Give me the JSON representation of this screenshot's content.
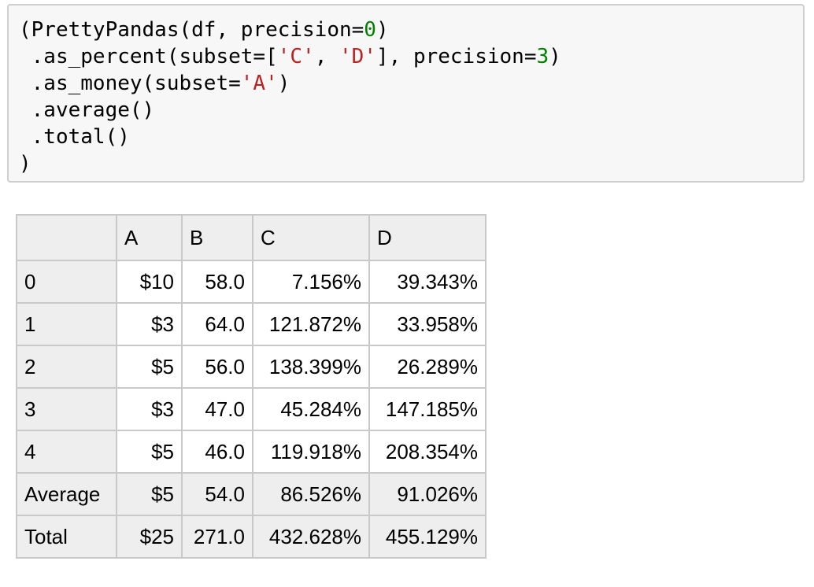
{
  "code_cell": {
    "lines": [
      [
        {
          "t": "(PrettyPandas(df, precision="
        },
        {
          "t": "0",
          "k": "num"
        },
        {
          "t": ")"
        }
      ],
      [
        {
          "t": " .as_percent(subset=["
        },
        {
          "t": "'C'",
          "k": "str"
        },
        {
          "t": ", "
        },
        {
          "t": "'D'",
          "k": "str"
        },
        {
          "t": "], precision="
        },
        {
          "t": "3",
          "k": "num"
        },
        {
          "t": ")"
        }
      ],
      [
        {
          "t": " .as_money(subset="
        },
        {
          "t": "'A'",
          "k": "str"
        },
        {
          "t": ")"
        }
      ],
      [
        {
          "t": " .average()"
        }
      ],
      [
        {
          "t": " .total()"
        }
      ],
      [
        {
          "t": ")"
        }
      ]
    ]
  },
  "table": {
    "columns": [
      "",
      "A",
      "B",
      "C",
      "D"
    ],
    "rows": [
      {
        "index": "0",
        "cells": [
          "$10",
          "58.0",
          "7.156%",
          "39.343%"
        ]
      },
      {
        "index": "1",
        "cells": [
          "$3",
          "64.0",
          "121.872%",
          "33.958%"
        ]
      },
      {
        "index": "2",
        "cells": [
          "$5",
          "56.0",
          "138.399%",
          "26.289%"
        ]
      },
      {
        "index": "3",
        "cells": [
          "$3",
          "47.0",
          "45.284%",
          "147.185%"
        ]
      },
      {
        "index": "4",
        "cells": [
          "$5",
          "46.0",
          "119.918%",
          "208.354%"
        ]
      },
      {
        "index": "Average",
        "cells": [
          "$5",
          "54.0",
          "86.526%",
          "91.026%"
        ],
        "summary": true
      },
      {
        "index": "Total",
        "cells": [
          "$25",
          "271.0",
          "432.628%",
          "455.129%"
        ],
        "summary": true
      }
    ]
  },
  "colors": {
    "string_token": "#ba2121",
    "number_token": "#008000",
    "cell_background": "#f7f7f7",
    "header_background": "#eeeeee"
  }
}
